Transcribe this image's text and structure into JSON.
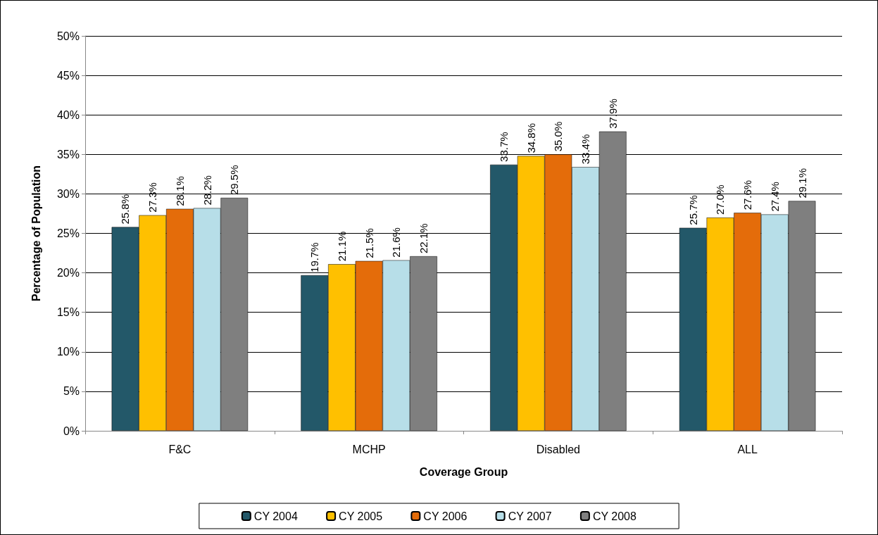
{
  "chart_data": {
    "type": "bar",
    "xlabel": "Coverage Group",
    "ylabel": "Percentage of Population",
    "categories": [
      "F&C",
      "MCHP",
      "Disabled",
      "ALL"
    ],
    "series": [
      {
        "name": "CY 2004",
        "color": "#235869",
        "values": [
          25.8,
          19.7,
          33.7,
          25.7
        ],
        "value_labels": [
          "25.8%",
          "19.7%",
          "33.7%",
          "25.7%"
        ]
      },
      {
        "name": "CY 2005",
        "color": "#ffc000",
        "values": [
          27.3,
          21.1,
          34.8,
          27.0
        ],
        "value_labels": [
          "27.3%",
          "21.1%",
          "34.8%",
          "27.0%"
        ]
      },
      {
        "name": "CY 2006",
        "color": "#e46c0a",
        "values": [
          28.1,
          21.5,
          35.0,
          27.6
        ],
        "value_labels": [
          "28.1%",
          "21.5%",
          "35.0%",
          "27.6%"
        ]
      },
      {
        "name": "CY 2007",
        "color": "#b7dee8",
        "values": [
          28.2,
          21.6,
          33.4,
          27.4
        ],
        "value_labels": [
          "28.2%",
          "21.6%",
          "33.4%",
          "27.4%"
        ]
      },
      {
        "name": "CY 2008",
        "color": "#7f7f7f",
        "values": [
          29.5,
          22.1,
          37.9,
          29.1
        ],
        "value_labels": [
          "29.5%",
          "22.1%",
          "37.9%",
          "29.1%"
        ]
      }
    ],
    "ylim": [
      0,
      50
    ],
    "yticks": [
      {
        "value": 0,
        "label": "0%"
      },
      {
        "value": 5,
        "label": "5%"
      },
      {
        "value": 10,
        "label": "10%"
      },
      {
        "value": 15,
        "label": "15%"
      },
      {
        "value": 20,
        "label": "20%"
      },
      {
        "value": 25,
        "label": "25%"
      },
      {
        "value": 30,
        "label": "30%"
      },
      {
        "value": 35,
        "label": "35%"
      },
      {
        "value": 40,
        "label": "40%"
      },
      {
        "value": 45,
        "label": "45%"
      },
      {
        "value": 50,
        "label": "50%"
      }
    ],
    "grid": "y",
    "legend": "bottom"
  }
}
